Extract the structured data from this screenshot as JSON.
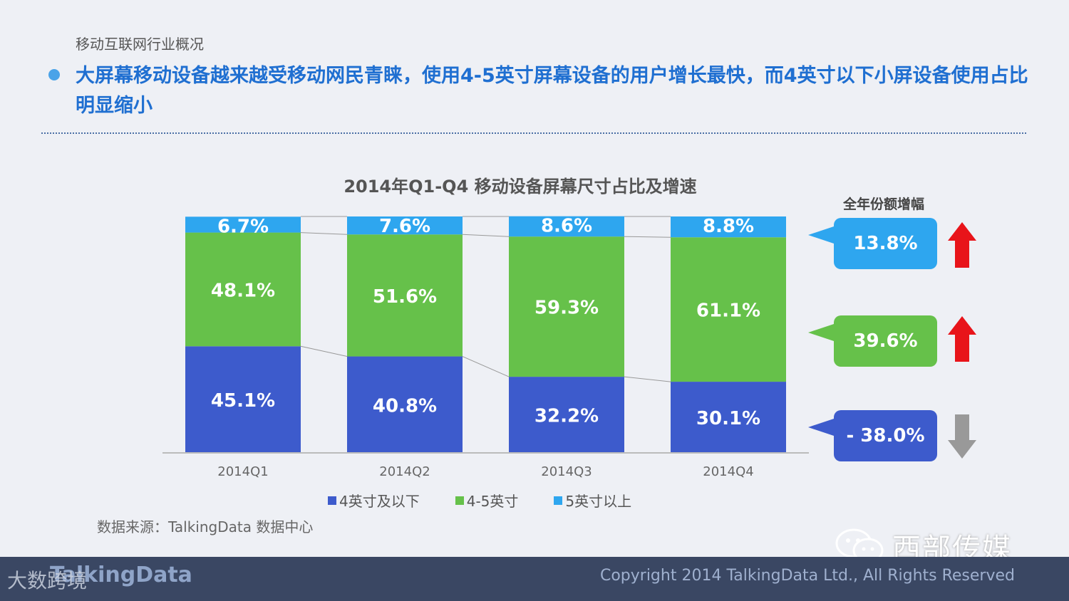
{
  "header": {
    "section": "移动互联网行业概况",
    "headline": "大屏幕移动设备越来越受移动网民青睐，使用4-5英寸屏幕设备的用户增长最快，而4英寸以下小屏设备使用占比明显缩小"
  },
  "chart_data": {
    "type": "bar",
    "stacked": true,
    "title": "2014年Q1-Q4 移动设备屏幕尺寸占比及增速",
    "categories": [
      "2014Q1",
      "2014Q2",
      "2014Q3",
      "2014Q4"
    ],
    "series": [
      {
        "name": "4英寸及以下",
        "color": "#3d5bcc",
        "values": [
          45.1,
          40.8,
          32.2,
          30.1
        ],
        "labels": [
          "45.1%",
          "40.8%",
          "32.2%",
          "30.1%"
        ]
      },
      {
        "name": "4-5英寸",
        "color": "#66c14a",
        "values": [
          48.1,
          51.6,
          59.3,
          61.1
        ],
        "labels": [
          "48.1%",
          "51.6%",
          "59.3%",
          "61.1%"
        ]
      },
      {
        "name": "5英寸以上",
        "color": "#2ea6ef",
        "values": [
          6.7,
          7.6,
          8.6,
          8.8
        ],
        "labels": [
          "6.7%",
          "7.6%",
          "8.6%",
          "8.8%"
        ]
      }
    ],
    "ylim": [
      0,
      100
    ],
    "grid": false,
    "legend_position": "bottom"
  },
  "growth": {
    "title": "全年份额增幅",
    "items": [
      {
        "label": "13.8%",
        "color": "#2ea6ef",
        "arrow": "up-arrow",
        "arrow_color": "#e8141a"
      },
      {
        "label": "39.6%",
        "color": "#66c14a",
        "arrow": "up-arrow",
        "arrow_color": "#e8141a"
      },
      {
        "label": "- 38.0%",
        "color": "#3d5bcc",
        "arrow": "down-arrow",
        "arrow_color": "#999999"
      }
    ]
  },
  "source": "数据来源：TalkingData 数据中心",
  "watermark": {
    "wechat_account": "西部传媒",
    "footer_overlay": "大数跨境"
  },
  "footer": {
    "logo": "TalkingData",
    "copyright": "Copyright 2014 TalkingData Ltd., All Rights Reserved"
  }
}
